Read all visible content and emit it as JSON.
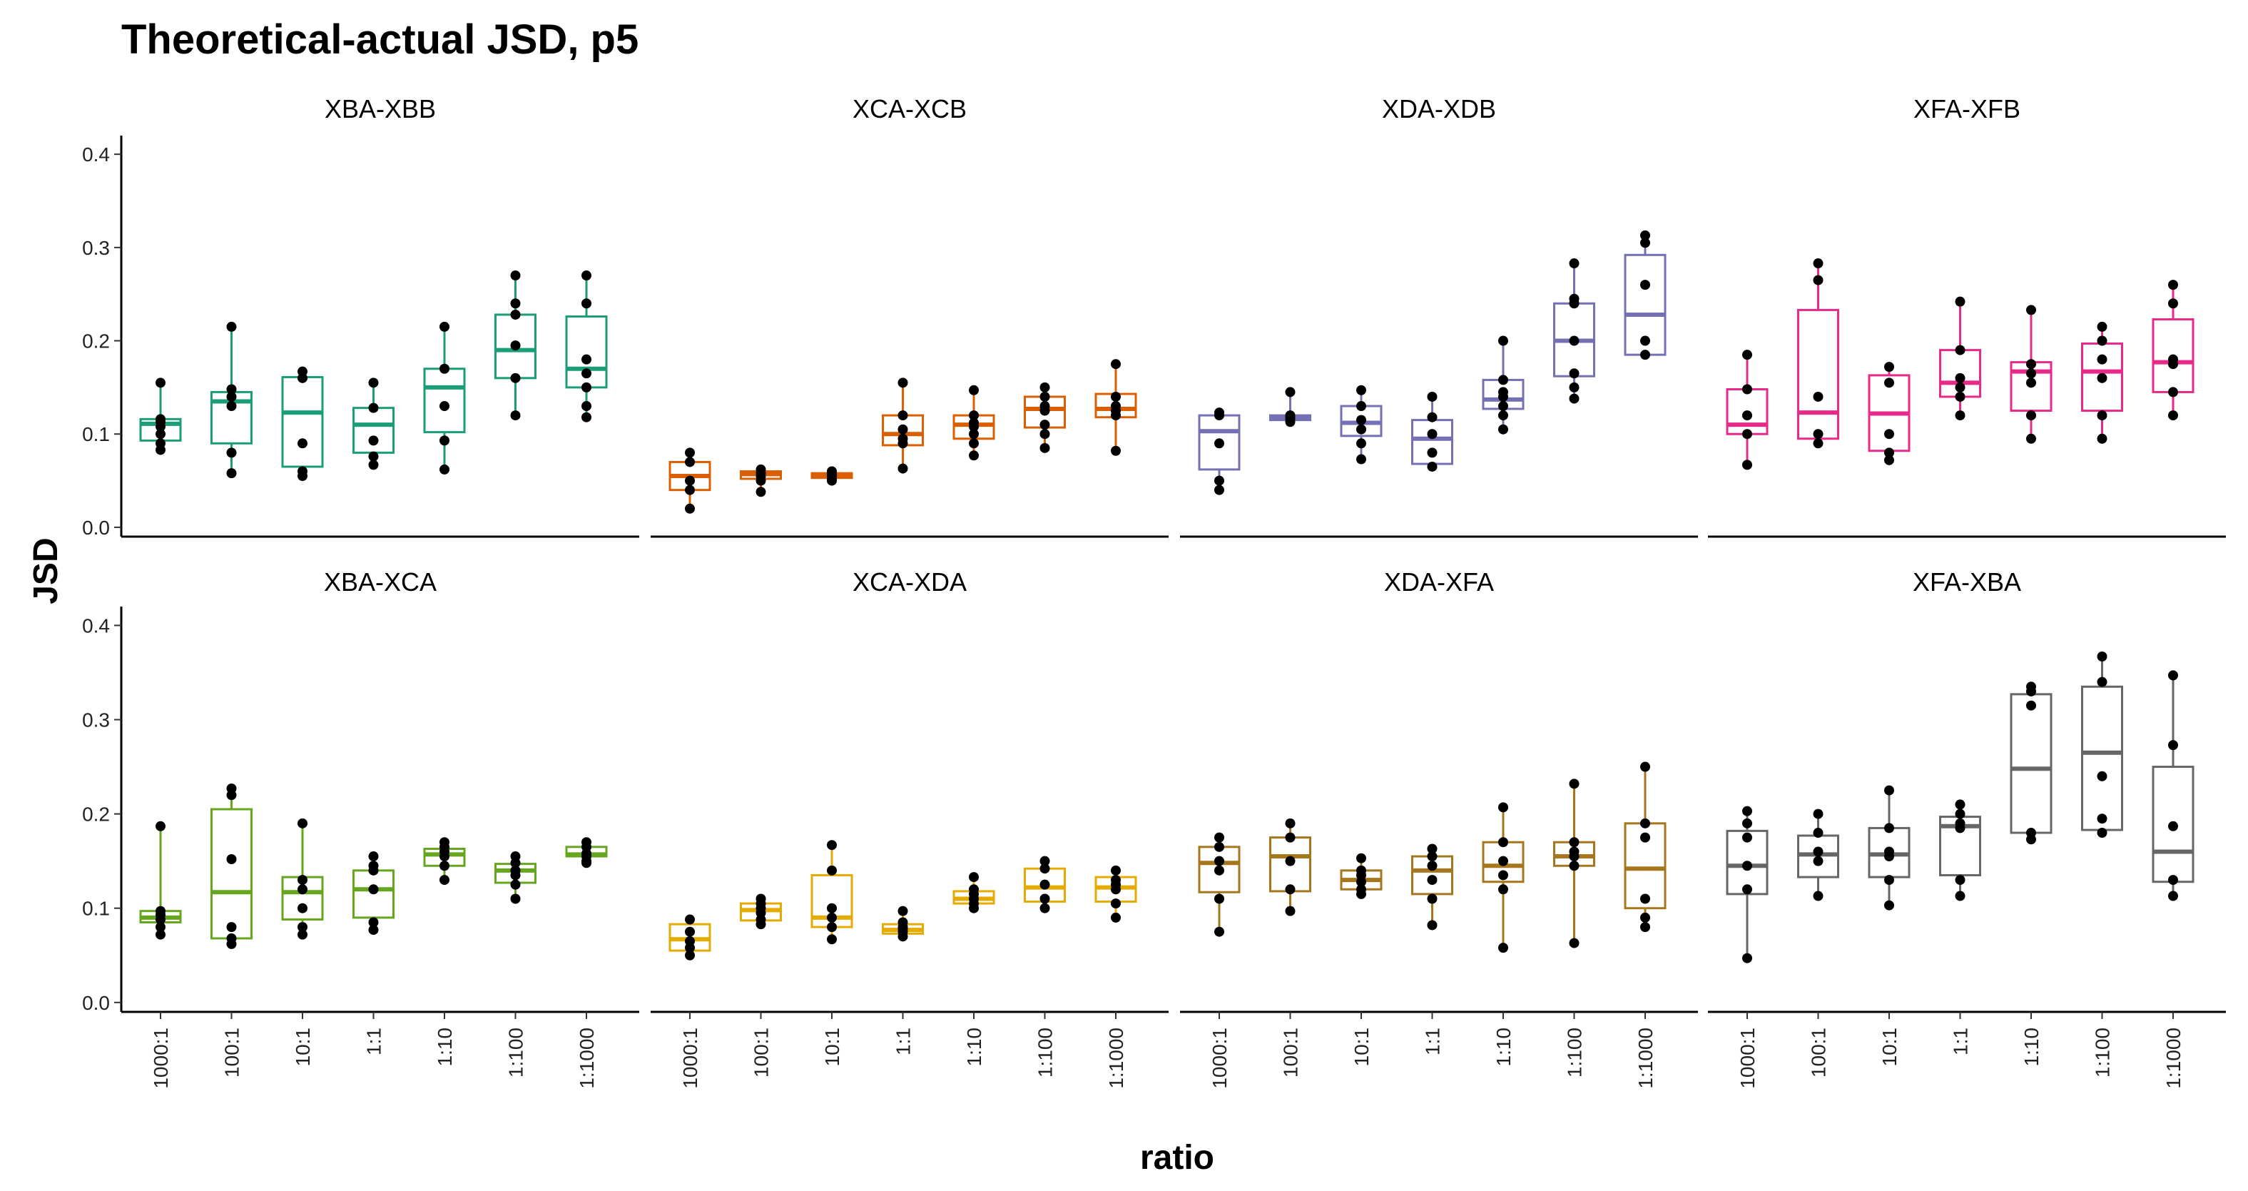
{
  "chart_data": {
    "type": "box",
    "title": "Theoretical-actual JSD, p5",
    "xlabel": "ratio",
    "ylabel": "JSD",
    "categories": [
      "1000:1",
      "100:1",
      "10:1",
      "1:1",
      "1:10",
      "1:100",
      "1:1000"
    ],
    "ylim": [
      -0.01,
      0.42
    ],
    "yticks": [
      0.0,
      0.1,
      0.2,
      0.3,
      0.4
    ],
    "ytick_labels": [
      "0.0",
      "0.1",
      "0.2",
      "0.3",
      "0.4"
    ],
    "grid": false,
    "legend": "none",
    "facets": [
      {
        "label": "XBA-XBB",
        "color": "#1B9E77",
        "boxes": [
          {
            "min": 0.083,
            "q1": 0.093,
            "median": 0.111,
            "q3": 0.116,
            "max": 0.155,
            "points": [
              0.155,
              0.116,
              0.113,
              0.108,
              0.1,
              0.09,
              0.083
            ]
          },
          {
            "min": 0.058,
            "q1": 0.09,
            "median": 0.135,
            "q3": 0.145,
            "max": 0.215,
            "points": [
              0.215,
              0.148,
              0.14,
              0.13,
              0.08,
              0.058
            ]
          },
          {
            "min": 0.054,
            "q1": 0.065,
            "median": 0.123,
            "q3": 0.161,
            "max": 0.167,
            "points": [
              0.167,
              0.16,
              0.09,
              0.06,
              0.055
            ]
          },
          {
            "min": 0.067,
            "q1": 0.08,
            "median": 0.11,
            "q3": 0.128,
            "max": 0.155,
            "points": [
              0.155,
              0.128,
              0.093,
              0.076,
              0.067
            ]
          },
          {
            "min": 0.062,
            "q1": 0.102,
            "median": 0.15,
            "q3": 0.17,
            "max": 0.215,
            "points": [
              0.215,
              0.17,
              0.13,
              0.093,
              0.062
            ]
          },
          {
            "min": 0.12,
            "q1": 0.16,
            "median": 0.19,
            "q3": 0.228,
            "max": 0.27,
            "points": [
              0.27,
              0.24,
              0.228,
              0.195,
              0.16,
              0.12
            ]
          },
          {
            "min": 0.118,
            "q1": 0.15,
            "median": 0.17,
            "q3": 0.226,
            "max": 0.27,
            "points": [
              0.27,
              0.24,
              0.18,
              0.165,
              0.15,
              0.13,
              0.118
            ]
          }
        ]
      },
      {
        "label": "XCA-XCB",
        "color": "#D95F02",
        "boxes": [
          {
            "min": 0.02,
            "q1": 0.04,
            "median": 0.055,
            "q3": 0.07,
            "max": 0.08,
            "points": [
              0.08,
              0.07,
              0.05,
              0.04,
              0.02
            ]
          },
          {
            "min": 0.038,
            "q1": 0.052,
            "median": 0.057,
            "q3": 0.06,
            "max": 0.062,
            "points": [
              0.062,
              0.058,
              0.055,
              0.05,
              0.038
            ]
          },
          {
            "min": 0.05,
            "q1": 0.053,
            "median": 0.055,
            "q3": 0.058,
            "max": 0.06,
            "points": [
              0.06,
              0.057,
              0.055,
              0.052,
              0.05
            ]
          },
          {
            "min": 0.063,
            "q1": 0.088,
            "median": 0.1,
            "q3": 0.12,
            "max": 0.155,
            "points": [
              0.155,
              0.12,
              0.105,
              0.095,
              0.09,
              0.063
            ]
          },
          {
            "min": 0.077,
            "q1": 0.095,
            "median": 0.11,
            "q3": 0.12,
            "max": 0.147,
            "points": [
              0.147,
              0.12,
              0.112,
              0.108,
              0.1,
              0.09,
              0.077
            ]
          },
          {
            "min": 0.085,
            "q1": 0.107,
            "median": 0.127,
            "q3": 0.14,
            "max": 0.15,
            "points": [
              0.15,
              0.14,
              0.13,
              0.125,
              0.11,
              0.1,
              0.085
            ]
          },
          {
            "min": 0.082,
            "q1": 0.118,
            "median": 0.127,
            "q3": 0.143,
            "max": 0.175,
            "points": [
              0.175,
              0.14,
              0.13,
              0.125,
              0.12,
              0.082
            ]
          }
        ]
      },
      {
        "label": "XDA-XDB",
        "color": "#7570B3",
        "boxes": [
          {
            "min": 0.04,
            "q1": 0.062,
            "median": 0.103,
            "q3": 0.12,
            "max": 0.123,
            "points": [
              0.123,
              0.12,
              0.09,
              0.05,
              0.04
            ]
          },
          {
            "min": 0.113,
            "q1": 0.115,
            "median": 0.118,
            "q3": 0.12,
            "max": 0.145,
            "points": [
              0.145,
              0.12,
              0.118,
              0.116,
              0.113
            ]
          },
          {
            "min": 0.073,
            "q1": 0.098,
            "median": 0.112,
            "q3": 0.13,
            "max": 0.147,
            "points": [
              0.147,
              0.13,
              0.115,
              0.105,
              0.09,
              0.073
            ]
          },
          {
            "min": 0.065,
            "q1": 0.068,
            "median": 0.095,
            "q3": 0.115,
            "max": 0.14,
            "points": [
              0.14,
              0.118,
              0.1,
              0.08,
              0.065
            ]
          },
          {
            "min": 0.105,
            "q1": 0.127,
            "median": 0.137,
            "q3": 0.158,
            "max": 0.2,
            "points": [
              0.2,
              0.158,
              0.145,
              0.14,
              0.13,
              0.12,
              0.105
            ]
          },
          {
            "min": 0.138,
            "q1": 0.162,
            "median": 0.2,
            "q3": 0.24,
            "max": 0.283,
            "points": [
              0.283,
              0.245,
              0.24,
              0.2,
              0.165,
              0.15,
              0.138
            ]
          },
          {
            "min": 0.183,
            "q1": 0.185,
            "median": 0.228,
            "q3": 0.292,
            "max": 0.313,
            "points": [
              0.313,
              0.305,
              0.26,
              0.2,
              0.185
            ]
          }
        ]
      },
      {
        "label": "XFA-XFB",
        "color": "#E7298A",
        "boxes": [
          {
            "min": 0.067,
            "q1": 0.1,
            "median": 0.11,
            "q3": 0.148,
            "max": 0.185,
            "points": [
              0.185,
              0.148,
              0.12,
              0.1,
              0.067
            ]
          },
          {
            "min": 0.09,
            "q1": 0.095,
            "median": 0.123,
            "q3": 0.233,
            "max": 0.283,
            "points": [
              0.283,
              0.265,
              0.14,
              0.1,
              0.09
            ]
          },
          {
            "min": 0.072,
            "q1": 0.082,
            "median": 0.122,
            "q3": 0.163,
            "max": 0.172,
            "points": [
              0.172,
              0.155,
              0.1,
              0.08,
              0.072
            ]
          },
          {
            "min": 0.12,
            "q1": 0.14,
            "median": 0.155,
            "q3": 0.19,
            "max": 0.242,
            "points": [
              0.242,
              0.19,
              0.16,
              0.15,
              0.14,
              0.12
            ]
          },
          {
            "min": 0.095,
            "q1": 0.125,
            "median": 0.167,
            "q3": 0.177,
            "max": 0.233,
            "points": [
              0.233,
              0.175,
              0.165,
              0.155,
              0.12,
              0.095
            ]
          },
          {
            "min": 0.095,
            "q1": 0.125,
            "median": 0.167,
            "q3": 0.197,
            "max": 0.215,
            "points": [
              0.215,
              0.2,
              0.18,
              0.16,
              0.12,
              0.095
            ]
          },
          {
            "min": 0.12,
            "q1": 0.145,
            "median": 0.177,
            "q3": 0.223,
            "max": 0.26,
            "points": [
              0.26,
              0.24,
              0.18,
              0.175,
              0.145,
              0.12
            ]
          }
        ]
      },
      {
        "label": "XBA-XCA",
        "color": "#66A61E",
        "boxes": [
          {
            "min": 0.072,
            "q1": 0.085,
            "median": 0.09,
            "q3": 0.097,
            "max": 0.187,
            "points": [
              0.187,
              0.097,
              0.093,
              0.088,
              0.08,
              0.072
            ]
          },
          {
            "min": 0.062,
            "q1": 0.068,
            "median": 0.117,
            "q3": 0.205,
            "max": 0.227,
            "points": [
              0.227,
              0.22,
              0.152,
              0.08,
              0.068,
              0.062
            ]
          },
          {
            "min": 0.072,
            "q1": 0.088,
            "median": 0.117,
            "q3": 0.133,
            "max": 0.19,
            "points": [
              0.19,
              0.13,
              0.12,
              0.1,
              0.08,
              0.072
            ]
          },
          {
            "min": 0.077,
            "q1": 0.09,
            "median": 0.12,
            "q3": 0.14,
            "max": 0.155,
            "points": [
              0.155,
              0.145,
              0.14,
              0.12,
              0.085,
              0.077
            ]
          },
          {
            "min": 0.13,
            "q1": 0.145,
            "median": 0.157,
            "q3": 0.163,
            "max": 0.17,
            "points": [
              0.17,
              0.165,
              0.16,
              0.155,
              0.145,
              0.13
            ]
          },
          {
            "min": 0.11,
            "q1": 0.127,
            "median": 0.14,
            "q3": 0.147,
            "max": 0.155,
            "points": [
              0.155,
              0.148,
              0.14,
              0.135,
              0.125,
              0.11
            ]
          },
          {
            "min": 0.148,
            "q1": 0.155,
            "median": 0.157,
            "q3": 0.165,
            "max": 0.17,
            "points": [
              0.17,
              0.165,
              0.158,
              0.155,
              0.15,
              0.148
            ]
          }
        ]
      },
      {
        "label": "XCA-XDA",
        "color": "#E6AB02",
        "boxes": [
          {
            "min": 0.05,
            "q1": 0.055,
            "median": 0.067,
            "q3": 0.083,
            "max": 0.088,
            "points": [
              0.088,
              0.075,
              0.065,
              0.058,
              0.05
            ]
          },
          {
            "min": 0.083,
            "q1": 0.087,
            "median": 0.098,
            "q3": 0.105,
            "max": 0.11,
            "points": [
              0.11,
              0.105,
              0.1,
              0.095,
              0.088,
              0.083
            ]
          },
          {
            "min": 0.067,
            "q1": 0.08,
            "median": 0.09,
            "q3": 0.135,
            "max": 0.167,
            "points": [
              0.167,
              0.14,
              0.1,
              0.09,
              0.08,
              0.067
            ]
          },
          {
            "min": 0.07,
            "q1": 0.073,
            "median": 0.077,
            "q3": 0.083,
            "max": 0.097,
            "points": [
              0.097,
              0.085,
              0.08,
              0.078,
              0.075,
              0.07
            ]
          },
          {
            "min": 0.1,
            "q1": 0.105,
            "median": 0.11,
            "q3": 0.118,
            "max": 0.133,
            "points": [
              0.133,
              0.12,
              0.115,
              0.11,
              0.105,
              0.1
            ]
          },
          {
            "min": 0.1,
            "q1": 0.107,
            "median": 0.122,
            "q3": 0.142,
            "max": 0.15,
            "points": [
              0.15,
              0.142,
              0.125,
              0.11,
              0.1
            ]
          },
          {
            "min": 0.09,
            "q1": 0.107,
            "median": 0.122,
            "q3": 0.133,
            "max": 0.14,
            "points": [
              0.14,
              0.13,
              0.125,
              0.12,
              0.105,
              0.09
            ]
          }
        ]
      },
      {
        "label": "XDA-XFA",
        "color": "#A6761D",
        "boxes": [
          {
            "min": 0.075,
            "q1": 0.117,
            "median": 0.148,
            "q3": 0.165,
            "max": 0.175,
            "points": [
              0.175,
              0.165,
              0.15,
              0.14,
              0.11,
              0.075
            ]
          },
          {
            "min": 0.097,
            "q1": 0.118,
            "median": 0.155,
            "q3": 0.175,
            "max": 0.19,
            "points": [
              0.19,
              0.175,
              0.15,
              0.12,
              0.097
            ]
          },
          {
            "min": 0.115,
            "q1": 0.12,
            "median": 0.13,
            "q3": 0.14,
            "max": 0.153,
            "points": [
              0.153,
              0.14,
              0.135,
              0.128,
              0.12,
              0.115
            ]
          },
          {
            "min": 0.082,
            "q1": 0.115,
            "median": 0.14,
            "q3": 0.155,
            "max": 0.163,
            "points": [
              0.163,
              0.155,
              0.145,
              0.13,
              0.11,
              0.082
            ]
          },
          {
            "min": 0.058,
            "q1": 0.128,
            "median": 0.145,
            "q3": 0.17,
            "max": 0.207,
            "points": [
              0.207,
              0.17,
              0.15,
              0.135,
              0.12,
              0.058
            ]
          },
          {
            "min": 0.063,
            "q1": 0.145,
            "median": 0.155,
            "q3": 0.17,
            "max": 0.232,
            "points": [
              0.232,
              0.17,
              0.16,
              0.155,
              0.145,
              0.063
            ]
          },
          {
            "min": 0.08,
            "q1": 0.1,
            "median": 0.142,
            "q3": 0.19,
            "max": 0.25,
            "points": [
              0.25,
              0.19,
              0.175,
              0.11,
              0.09,
              0.08
            ]
          }
        ]
      },
      {
        "label": "XFA-XBA",
        "color": "#666666",
        "boxes": [
          {
            "min": 0.047,
            "q1": 0.115,
            "median": 0.145,
            "q3": 0.182,
            "max": 0.203,
            "points": [
              0.203,
              0.19,
              0.175,
              0.145,
              0.12,
              0.047
            ]
          },
          {
            "min": 0.113,
            "q1": 0.133,
            "median": 0.157,
            "q3": 0.177,
            "max": 0.2,
            "points": [
              0.2,
              0.18,
              0.16,
              0.15,
              0.113
            ]
          },
          {
            "min": 0.103,
            "q1": 0.133,
            "median": 0.157,
            "q3": 0.185,
            "max": 0.225,
            "points": [
              0.225,
              0.185,
              0.16,
              0.155,
              0.13,
              0.103
            ]
          },
          {
            "min": 0.113,
            "q1": 0.135,
            "median": 0.187,
            "q3": 0.197,
            "max": 0.21,
            "points": [
              0.21,
              0.2,
              0.19,
              0.185,
              0.13,
              0.113
            ]
          },
          {
            "min": 0.173,
            "q1": 0.18,
            "median": 0.248,
            "q3": 0.327,
            "max": 0.335,
            "points": [
              0.335,
              0.33,
              0.315,
              0.18,
              0.173
            ]
          },
          {
            "min": 0.18,
            "q1": 0.183,
            "median": 0.265,
            "q3": 0.335,
            "max": 0.367,
            "points": [
              0.367,
              0.34,
              0.24,
              0.195,
              0.18
            ]
          },
          {
            "min": 0.113,
            "q1": 0.128,
            "median": 0.16,
            "q3": 0.25,
            "max": 0.347,
            "points": [
              0.347,
              0.273,
              0.187,
              0.13,
              0.113
            ]
          }
        ]
      }
    ]
  }
}
